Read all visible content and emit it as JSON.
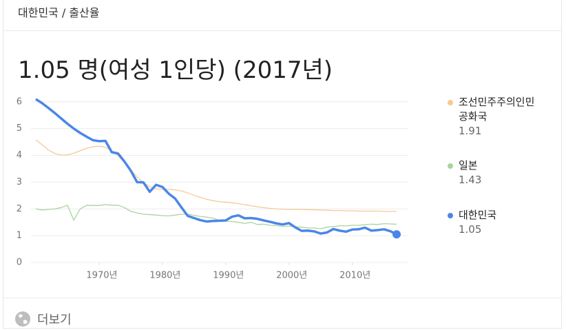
{
  "breadcrumb": {
    "items": [
      "대한민국",
      "출산율"
    ],
    "separator": "/"
  },
  "chart_data": {
    "type": "line",
    "title": "1.05 명(여성 1인당) (2017년)",
    "x": [
      1960,
      1961,
      1962,
      1963,
      1964,
      1965,
      1966,
      1967,
      1968,
      1969,
      1970,
      1971,
      1972,
      1973,
      1974,
      1975,
      1976,
      1977,
      1978,
      1979,
      1980,
      1981,
      1982,
      1983,
      1984,
      1985,
      1986,
      1987,
      1988,
      1989,
      1990,
      1991,
      1992,
      1993,
      1994,
      1995,
      1996,
      1997,
      1998,
      1999,
      2000,
      2001,
      2002,
      2003,
      2004,
      2005,
      2006,
      2007,
      2008,
      2009,
      2010,
      2011,
      2012,
      2013,
      2014,
      2015,
      2016,
      2017
    ],
    "series": [
      {
        "name": "조선민주주의인민공화국",
        "color": "#f5c994",
        "width": 1.3,
        "values": [
          4.58,
          4.4,
          4.2,
          4.07,
          4.01,
          4.02,
          4.08,
          4.17,
          4.26,
          4.32,
          4.34,
          4.3,
          4.17,
          3.98,
          3.74,
          3.46,
          3.2,
          2.98,
          2.83,
          2.75,
          2.73,
          2.73,
          2.71,
          2.67,
          2.6,
          2.51,
          2.43,
          2.36,
          2.31,
          2.27,
          2.25,
          2.23,
          2.2,
          2.16,
          2.12,
          2.08,
          2.05,
          2.02,
          2.0,
          1.99,
          1.98,
          1.98,
          1.98,
          1.97,
          1.97,
          1.96,
          1.95,
          1.94,
          1.94,
          1.93,
          1.93,
          1.92,
          1.92,
          1.92,
          1.92,
          1.91,
          1.91,
          1.91
        ]
      },
      {
        "name": "일본",
        "color": "#a9d49c",
        "width": 1.3,
        "values": [
          2.0,
          1.96,
          1.98,
          2.0,
          2.05,
          2.14,
          1.58,
          2.0,
          2.13,
          2.13,
          2.13,
          2.16,
          2.14,
          2.14,
          2.05,
          1.91,
          1.85,
          1.8,
          1.79,
          1.77,
          1.75,
          1.74,
          1.77,
          1.8,
          1.81,
          1.76,
          1.72,
          1.69,
          1.66,
          1.57,
          1.54,
          1.53,
          1.5,
          1.46,
          1.5,
          1.42,
          1.43,
          1.39,
          1.38,
          1.34,
          1.36,
          1.33,
          1.32,
          1.29,
          1.29,
          1.26,
          1.32,
          1.34,
          1.37,
          1.37,
          1.39,
          1.39,
          1.41,
          1.43,
          1.42,
          1.45,
          1.44,
          1.43
        ]
      },
      {
        "name": "대한민국",
        "color": "#4a86e8",
        "width": 3.5,
        "values": [
          6.1,
          5.95,
          5.77,
          5.58,
          5.38,
          5.18,
          5.0,
          4.84,
          4.7,
          4.57,
          4.53,
          4.54,
          4.12,
          4.07,
          3.77,
          3.43,
          3.0,
          2.99,
          2.64,
          2.9,
          2.82,
          2.57,
          2.39,
          2.06,
          1.74,
          1.66,
          1.58,
          1.53,
          1.55,
          1.56,
          1.57,
          1.71,
          1.76,
          1.65,
          1.66,
          1.63,
          1.57,
          1.52,
          1.46,
          1.42,
          1.47,
          1.31,
          1.18,
          1.19,
          1.16,
          1.08,
          1.12,
          1.25,
          1.19,
          1.15,
          1.23,
          1.24,
          1.3,
          1.19,
          1.21,
          1.24,
          1.17,
          1.05
        ]
      }
    ],
    "xlim": [
      1960,
      2017
    ],
    "xticks": [
      {
        "value": 1970,
        "label": "1970년"
      },
      {
        "value": 1980,
        "label": "1980년"
      },
      {
        "value": 1990,
        "label": "1990년"
      },
      {
        "value": 2000,
        "label": "2000년"
      },
      {
        "value": 2010,
        "label": "2010년"
      }
    ],
    "ylim": [
      0,
      6.2
    ],
    "yticks": [
      0,
      1,
      2,
      3,
      4,
      5,
      6
    ],
    "grid": true,
    "legend": "right"
  },
  "footer": {
    "more": "더보기"
  }
}
